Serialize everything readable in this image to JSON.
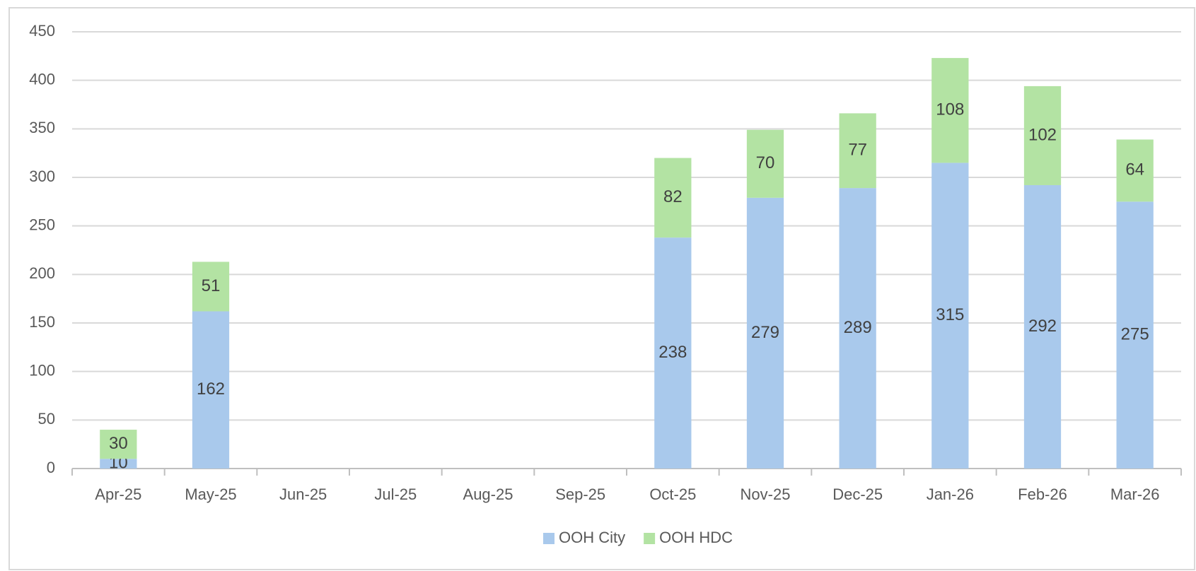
{
  "chart_data": {
    "type": "stacked_bar",
    "categories": [
      "Apr-25",
      "May-25",
      "Jun-25",
      "Jul-25",
      "Aug-25",
      "Sep-25",
      "Oct-25",
      "Nov-25",
      "Dec-25",
      "Jan-26",
      "Feb-26",
      "Mar-26"
    ],
    "series": [
      {
        "name": "OOH City",
        "color": "#a9c9ec",
        "values": [
          10,
          162,
          null,
          null,
          null,
          null,
          238,
          279,
          289,
          315,
          292,
          275
        ]
      },
      {
        "name": "OOH HDC",
        "color": "#b3e3a3",
        "values": [
          30,
          51,
          null,
          null,
          null,
          null,
          82,
          70,
          77,
          108,
          102,
          64
        ]
      }
    ],
    "ylim": [
      0,
      450
    ],
    "yticks": [
      0,
      50,
      100,
      150,
      200,
      250,
      300,
      350,
      400,
      450
    ],
    "grid": true,
    "legend": "bottom"
  }
}
